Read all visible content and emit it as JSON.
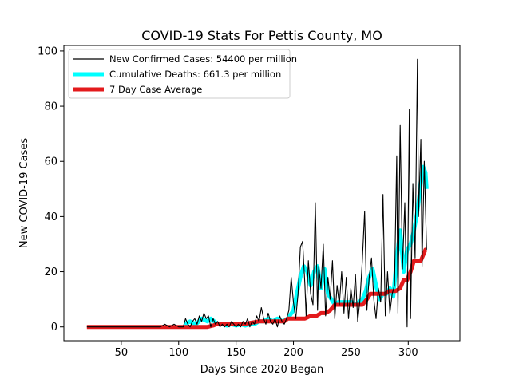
{
  "chart_data": {
    "type": "line",
    "title": "COVID-19 Stats For Pettis County, MO",
    "xlabel": "Days Since 2020 Began",
    "ylabel": "New COVID-19 Cases",
    "xlim": [
      0,
      345
    ],
    "ylim": [
      -5,
      102
    ],
    "xticks": [
      50,
      100,
      150,
      200,
      250,
      300
    ],
    "yticks": [
      0,
      20,
      40,
      60,
      80,
      100
    ],
    "grid": false,
    "legend_position": "top-left",
    "series": [
      {
        "name": "New Confirmed Cases: 54400 per million",
        "color": "#000000",
        "style": "thin",
        "x": [
          20,
          40,
          60,
          84,
          88,
          92,
          96,
          100,
          104,
          106,
          108,
          110,
          112,
          114,
          116,
          118,
          120,
          122,
          124,
          126,
          128,
          130,
          132,
          134,
          136,
          138,
          140,
          142,
          144,
          146,
          148,
          150,
          152,
          154,
          156,
          158,
          160,
          162,
          164,
          166,
          168,
          170,
          172,
          174,
          176,
          178,
          180,
          182,
          184,
          186,
          188,
          190,
          192,
          194,
          196,
          198,
          200,
          202,
          204,
          206,
          208,
          210,
          211,
          213,
          215,
          217,
          219,
          221,
          222,
          224,
          226,
          228,
          230,
          232,
          234,
          236,
          238,
          240,
          242,
          244,
          246,
          248,
          250,
          252,
          254,
          256,
          258,
          260,
          262,
          264,
          266,
          268,
          270,
          272,
          274,
          276,
          278,
          280,
          282,
          284,
          286,
          288,
          290,
          291,
          293,
          295,
          297,
          299,
          301,
          302,
          304,
          306,
          308,
          309,
          311,
          312,
          314,
          316
        ],
        "y": [
          0,
          0,
          0,
          0,
          1,
          0,
          1,
          0,
          0,
          3,
          1,
          0,
          2,
          3,
          1,
          4,
          2,
          5,
          3,
          4,
          0,
          3,
          1,
          2,
          0,
          1,
          0,
          1,
          0,
          2,
          1,
          0,
          1,
          0,
          2,
          1,
          3,
          0,
          2,
          1,
          4,
          2,
          7,
          3,
          1,
          5,
          2,
          1,
          3,
          0,
          4,
          2,
          1,
          3,
          6,
          18,
          9,
          3,
          12,
          29,
          31,
          15,
          4,
          24,
          12,
          8,
          45,
          6,
          22,
          14,
          30,
          4,
          18,
          10,
          24,
          3,
          15,
          8,
          20,
          5,
          18,
          3,
          14,
          7,
          19,
          2,
          10,
          24,
          42,
          6,
          18,
          25,
          10,
          3,
          14,
          9,
          48,
          4,
          20,
          5,
          12,
          15,
          62,
          5,
          73,
          21,
          45,
          0,
          79,
          3,
          52,
          25,
          97,
          40,
          68,
          22,
          60,
          28
        ]
      },
      {
        "name": "Cumulative Deaths: 661.3 per million",
        "color": "#00ffff",
        "style": "thick",
        "x": [
          105,
          110,
          115,
          120,
          125,
          128,
          131,
          134,
          138,
          142,
          146,
          150,
          154,
          158,
          162,
          166,
          170,
          174,
          178,
          182,
          186,
          190,
          195,
          200,
          203,
          206,
          209,
          212,
          215,
          218,
          221,
          224,
          227,
          230,
          233,
          236,
          239,
          242,
          245,
          248,
          251,
          254,
          257,
          260,
          263,
          266,
          269,
          272,
          275,
          278,
          281,
          284,
          287,
          290,
          293,
          296,
          299,
          302,
          305,
          308,
          311,
          313,
          315,
          316
        ],
        "y": [
          1,
          2,
          1,
          3,
          2,
          3,
          2,
          1,
          1,
          0.5,
          1,
          0.5,
          1,
          0.5,
          1,
          1,
          2,
          2,
          3,
          2,
          3,
          2,
          3,
          6,
          12,
          18,
          22,
          20,
          15,
          20,
          22,
          14,
          21,
          12,
          10,
          8,
          9,
          9,
          9,
          9,
          9,
          8,
          9,
          10,
          13,
          18,
          21,
          15,
          10,
          12,
          12,
          14,
          11,
          25,
          35,
          20,
          28,
          30,
          35,
          42,
          52,
          58,
          56,
          50
        ]
      },
      {
        "name": "7 Day Case Average",
        "color": "#e31a1c",
        "style": "thick",
        "x": [
          20,
          60,
          100,
          125,
          130,
          133,
          136,
          146,
          156,
          163,
          170,
          175,
          180,
          192,
          195,
          200,
          205,
          210,
          215,
          220,
          224,
          228,
          232,
          236,
          240,
          245,
          250,
          255,
          260,
          264,
          267,
          270,
          275,
          280,
          283,
          286,
          289,
          293,
          296,
          299,
          302,
          305,
          308,
          311,
          313,
          315,
          316
        ],
        "y": [
          0,
          0,
          0,
          0,
          0.5,
          1,
          1,
          1,
          1,
          1.5,
          2,
          2,
          2,
          2,
          3,
          3,
          3,
          3,
          4,
          4,
          5,
          5,
          6,
          8,
          8,
          8,
          8,
          8,
          8,
          10,
          12,
          12,
          12,
          12,
          13,
          13,
          13,
          14,
          17,
          17,
          20,
          24,
          24,
          24,
          26,
          28,
          28
        ]
      }
    ]
  }
}
